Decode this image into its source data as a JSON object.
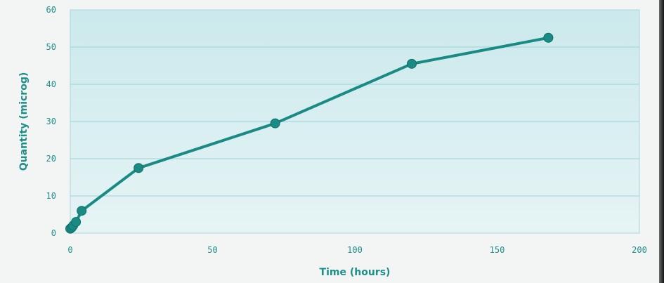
{
  "chart_data": {
    "type": "line",
    "title": "",
    "xlabel": "Time (hours)",
    "ylabel": "Quantity (microg)",
    "xlim": [
      0,
      200
    ],
    "ylim": [
      0,
      60
    ],
    "x_ticks": [
      "0",
      "50",
      "100",
      "150",
      "200"
    ],
    "y_ticks": [
      "0",
      "10",
      "20",
      "30",
      "40",
      "50",
      "60"
    ],
    "grid": "horizontal",
    "series": [
      {
        "x": [
          0,
          0.5,
          1,
          2,
          4,
          24,
          72,
          120,
          168
        ],
        "y": [
          1.2,
          1.5,
          2,
          3,
          6,
          17.5,
          29.5,
          45.5,
          52.5
        ]
      }
    ],
    "colors": {
      "line": "#1a8a84",
      "plot_bg_top": "#cbe9ec",
      "plot_bg_bottom": "#e6f4f5",
      "grid": "#9cd3d6",
      "text": "#1e8e88"
    }
  }
}
